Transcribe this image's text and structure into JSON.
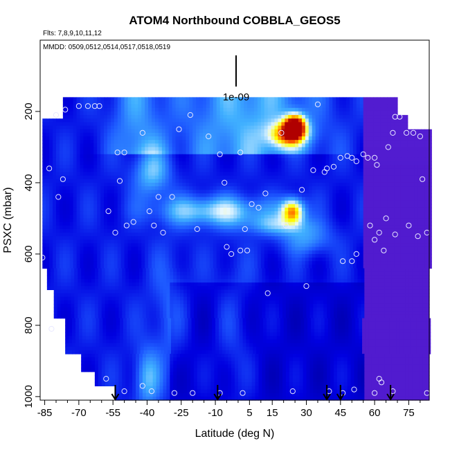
{
  "chart_data": {
    "type": "heatmap",
    "title": "ATOM4 Northbound COBBLA_GEOS5",
    "flights_label": "Flts: 7,8,9,10,11,12",
    "dates_label": "MMDD: 0509,0512,0514,0517,0518,0519",
    "xlabel": "Latitude (deg N)",
    "ylabel": "PSXC (mbar)",
    "xlim": [
      -87,
      84
    ],
    "ylim": [
      1010,
      0
    ],
    "x_ticks": [
      -85,
      -70,
      -55,
      -40,
      -25,
      -10,
      5,
      15,
      30,
      45,
      60,
      75
    ],
    "x_tick_labels": [
      "-85",
      "-70",
      "-55",
      "-40",
      "-25",
      "-10",
      "5",
      "15",
      "30",
      "45",
      "60",
      "75"
    ],
    "x_minor_ticks": [
      -80,
      -75,
      -65,
      -60,
      -50,
      -45,
      -35,
      -30,
      -20,
      -15,
      -5,
      0,
      10,
      20,
      25,
      35,
      40,
      50,
      55,
      65,
      70,
      80
    ],
    "y_ticks": [
      200,
      400,
      600,
      800,
      1000
    ],
    "y_tick_labels": [
      "200",
      "400",
      "600",
      "800",
      "1000"
    ],
    "scale_label": "1e-09",
    "colormap": [
      "#000099",
      "#0000e0",
      "#1e5aff",
      "#40b0ff",
      "#e8f8ff",
      "#ffff00",
      "#ff6000",
      "#b00000"
    ],
    "value_range": [
      0,
      1
    ],
    "background_value": 0.18,
    "arrows_latitude": [
      -54,
      -9,
      39,
      45,
      67
    ],
    "sample_points": [
      {
        "lat": -80,
        "p": 210
      },
      {
        "lat": -76,
        "p": 195
      },
      {
        "lat": -70,
        "p": 185
      },
      {
        "lat": -66,
        "p": 185
      },
      {
        "lat": -63,
        "p": 185
      },
      {
        "lat": -61,
        "p": 185
      },
      {
        "lat": -83,
        "p": 360
      },
      {
        "lat": -79,
        "p": 440
      },
      {
        "lat": -77,
        "p": 390
      },
      {
        "lat": -57,
        "p": 480
      },
      {
        "lat": -53,
        "p": 315
      },
      {
        "lat": -50,
        "p": 315
      },
      {
        "lat": -52,
        "p": 395
      },
      {
        "lat": -54,
        "p": 540
      },
      {
        "lat": -49,
        "p": 520
      },
      {
        "lat": -46,
        "p": 510
      },
      {
        "lat": -42,
        "p": 260
      },
      {
        "lat": -39,
        "p": 480
      },
      {
        "lat": -37,
        "p": 520
      },
      {
        "lat": -35,
        "p": 440
      },
      {
        "lat": -33,
        "p": 540
      },
      {
        "lat": -29,
        "p": 440
      },
      {
        "lat": -26,
        "p": 250
      },
      {
        "lat": -21,
        "p": 210
      },
      {
        "lat": -18,
        "p": 530
      },
      {
        "lat": -13,
        "p": 270
      },
      {
        "lat": -8,
        "p": 320
      },
      {
        "lat": -6,
        "p": 400
      },
      {
        "lat": -5,
        "p": 580
      },
      {
        "lat": -3,
        "p": 600
      },
      {
        "lat": 1,
        "p": 315
      },
      {
        "lat": 1,
        "p": 590
      },
      {
        "lat": 3,
        "p": 530
      },
      {
        "lat": 4,
        "p": 590
      },
      {
        "lat": 6,
        "p": 460
      },
      {
        "lat": 9,
        "p": 470
      },
      {
        "lat": 12,
        "p": 430
      },
      {
        "lat": 13,
        "p": 710
      },
      {
        "lat": 19,
        "p": 260
      },
      {
        "lat": 21,
        "p": 520
      },
      {
        "lat": 28,
        "p": 420
      },
      {
        "lat": 33,
        "p": 365
      },
      {
        "lat": 35,
        "p": 180
      },
      {
        "lat": 38,
        "p": 370
      },
      {
        "lat": 39,
        "p": 360
      },
      {
        "lat": 42,
        "p": 355
      },
      {
        "lat": 45,
        "p": 330
      },
      {
        "lat": 48,
        "p": 325
      },
      {
        "lat": 50,
        "p": 330
      },
      {
        "lat": 52,
        "p": 340
      },
      {
        "lat": 55,
        "p": 320
      },
      {
        "lat": 57,
        "p": 330
      },
      {
        "lat": 60,
        "p": 330
      },
      {
        "lat": 61,
        "p": 350
      },
      {
        "lat": 46,
        "p": 620
      },
      {
        "lat": 50,
        "p": 620
      },
      {
        "lat": 52,
        "p": 600
      },
      {
        "lat": 58,
        "p": 520
      },
      {
        "lat": 60,
        "p": 560
      },
      {
        "lat": 62,
        "p": 540
      },
      {
        "lat": 65,
        "p": 500
      },
      {
        "lat": 66,
        "p": 300
      },
      {
        "lat": 68,
        "p": 260
      },
      {
        "lat": 69,
        "p": 215
      },
      {
        "lat": 71,
        "p": 215
      },
      {
        "lat": 74,
        "p": 260
      },
      {
        "lat": 77,
        "p": 260
      },
      {
        "lat": 80,
        "p": 270
      },
      {
        "lat": 81,
        "p": 390
      },
      {
        "lat": 83,
        "p": 540
      },
      {
        "lat": 79,
        "p": 550
      },
      {
        "lat": 75,
        "p": 520
      },
      {
        "lat": 69,
        "p": 545
      },
      {
        "lat": 64,
        "p": 590
      },
      {
        "lat": 62,
        "p": 950
      },
      {
        "lat": 63,
        "p": 960
      },
      {
        "lat": 68,
        "p": 985
      },
      {
        "lat": 83,
        "p": 990
      },
      {
        "lat": -58,
        "p": 950
      },
      {
        "lat": -50,
        "p": 985
      },
      {
        "lat": -42,
        "p": 970
      },
      {
        "lat": -38,
        "p": 985
      },
      {
        "lat": -28,
        "p": 990
      },
      {
        "lat": -20,
        "p": 990
      },
      {
        "lat": -8,
        "p": 990
      },
      {
        "lat": 2,
        "p": 990
      },
      {
        "lat": 24,
        "p": 985
      },
      {
        "lat": 40,
        "p": 985
      },
      {
        "lat": 46,
        "p": 990
      },
      {
        "lat": 51,
        "p": 980
      },
      {
        "lat": 60,
        "p": 990
      },
      {
        "lat": 30,
        "p": 690
      },
      {
        "lat": -82,
        "p": 810
      },
      {
        "lat": -86,
        "p": 610
      }
    ]
  }
}
